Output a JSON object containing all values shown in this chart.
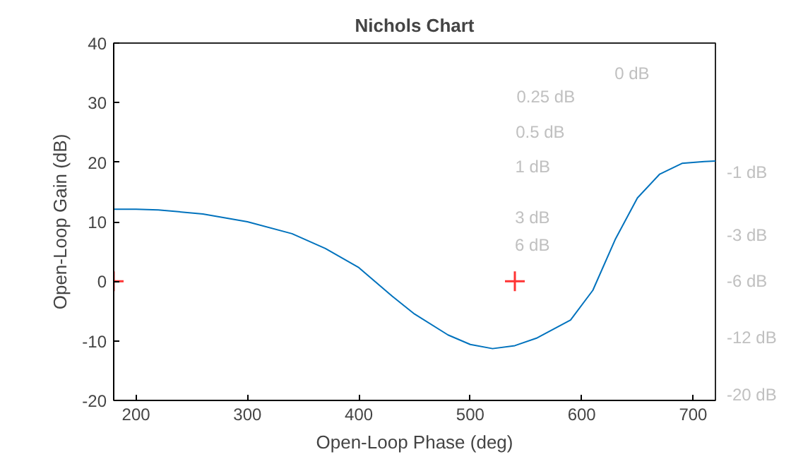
{
  "chart_data": {
    "type": "line",
    "title": "Nichols Chart",
    "xlabel": "Open-Loop Phase (deg)",
    "ylabel": "Open-Loop Gain (dB)",
    "xlim": [
      180,
      720
    ],
    "ylim": [
      -20,
      40
    ],
    "xticks": [
      200,
      300,
      400,
      500,
      600,
      700
    ],
    "yticks": [
      -20,
      -10,
      0,
      10,
      20,
      30,
      40
    ],
    "series": [
      {
        "color": "#0072bd",
        "x": [
          180,
          200,
          220,
          260,
          300,
          340,
          370,
          400,
          430,
          450,
          480,
          500,
          520,
          540,
          560,
          590,
          610,
          630,
          650,
          670,
          690,
          710,
          720
        ],
        "values": [
          12.1,
          12.1,
          12,
          11.3,
          10,
          8,
          5.5,
          2.3,
          -2.5,
          -5.5,
          -9,
          -10.6,
          -11.3,
          -10.8,
          -9.5,
          -6.5,
          -1.5,
          7,
          14,
          18,
          19.8,
          20.1,
          20.2
        ]
      },
      {
        "type": "scatter",
        "marker": "cross",
        "color": "#ff0000",
        "x": [
          180,
          540
        ],
        "values": [
          0,
          0
        ]
      }
    ],
    "annotations": [
      "0 dB",
      "0.25 dB",
      "0.5 dB",
      "1 dB",
      "3 dB",
      "6 dB",
      "-1 dB",
      "-3 dB",
      "-6 dB",
      "-12 dB",
      "-20 dB"
    ]
  }
}
